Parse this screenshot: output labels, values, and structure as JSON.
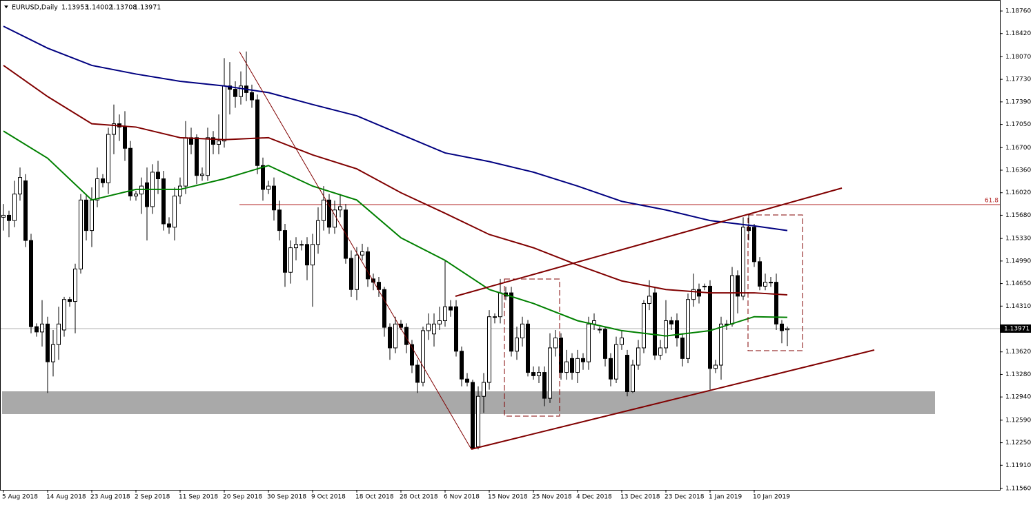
{
  "chart_data": {
    "type": "candlestick",
    "title": "EURUSD,Daily",
    "fib_label": 61.8,
    "up_color": "#ffffff",
    "down_color": "#000000",
    "ylim": [
      1.1156,
      1.1876
    ],
    "yticks": [
      {
        "value": 1.1876,
        "label": "1.18760"
      },
      {
        "value": 1.1842,
        "label": "1.18420"
      },
      {
        "value": 1.1807,
        "label": "1.18070"
      },
      {
        "value": 1.1773,
        "label": "1.17730"
      },
      {
        "value": 1.1739,
        "label": "1.17390"
      },
      {
        "value": 1.1705,
        "label": "1.17050"
      },
      {
        "value": 1.167,
        "label": "1.16700"
      },
      {
        "value": 1.1636,
        "label": "1.16360"
      },
      {
        "value": 1.1602,
        "label": "1.16020"
      },
      {
        "value": 1.1568,
        "label": "1.15680"
      },
      {
        "value": 1.1533,
        "label": "1.15330"
      },
      {
        "value": 1.1499,
        "label": "1.14990"
      },
      {
        "value": 1.1465,
        "label": "1.14650"
      },
      {
        "value": 1.1431,
        "label": "1.14310"
      },
      {
        "value": 1.1396,
        "label": "1.13960"
      },
      {
        "value": 1.1362,
        "label": "1.13620"
      },
      {
        "value": 1.1328,
        "label": "1.13280"
      },
      {
        "value": 1.1294,
        "label": "1.12940"
      },
      {
        "value": 1.1259,
        "label": "1.12590"
      },
      {
        "value": 1.1225,
        "label": "1.12250"
      },
      {
        "value": 1.1191,
        "label": "1.11910"
      },
      {
        "value": 1.1156,
        "label": "1.11560"
      }
    ],
    "categories": [
      "5 Aug 2018",
      null,
      null,
      null,
      null,
      null,
      null,
      null,
      "14 Aug 2018",
      null,
      null,
      null,
      null,
      null,
      null,
      null,
      "23 Aug 2018",
      null,
      null,
      null,
      null,
      null,
      null,
      null,
      "2 Sep 2018",
      null,
      null,
      null,
      null,
      null,
      null,
      null,
      "11 Sep 2018",
      null,
      null,
      null,
      null,
      null,
      null,
      null,
      "20 Sep 2018",
      null,
      null,
      null,
      null,
      null,
      null,
      null,
      "30 Sep 2018",
      null,
      null,
      null,
      null,
      null,
      null,
      null,
      "9 Oct 2018",
      null,
      null,
      null,
      null,
      null,
      null,
      null,
      "18 Oct 2018",
      null,
      null,
      null,
      null,
      null,
      null,
      null,
      "28 Oct 2018",
      null,
      null,
      null,
      null,
      null,
      null,
      null,
      "6 Nov 2018",
      null,
      null,
      null,
      null,
      null,
      null,
      null,
      "15 Nov 2018",
      null,
      null,
      null,
      null,
      null,
      null,
      null,
      "25 Nov 2018",
      null,
      null,
      null,
      null,
      null,
      null,
      null,
      "4 Dec 2018",
      null,
      null,
      null,
      null,
      null,
      null,
      null,
      "13 Dec 2018",
      null,
      null,
      null,
      null,
      null,
      null,
      null,
      "23 Dec 2018",
      null,
      null,
      null,
      null,
      null,
      null,
      null,
      "1 Jan 2019",
      null,
      null,
      null,
      null,
      null,
      null,
      null,
      "10 Jan 2019",
      null,
      null,
      null,
      null,
      null,
      null
    ],
    "open": [
      1.1565,
      1.1568,
      1.156,
      1.16,
      1.162,
      1.153,
      1.14,
      1.1392,
      1.1404,
      1.1347,
      1.1373,
      1.1395,
      1.1441,
      1.1438,
      1.1487,
      1.1591,
      1.1545,
      1.1591,
      1.1623,
      1.1617,
      1.169,
      1.1706,
      1.1701,
      1.1669,
      1.1597,
      1.16,
      1.1617,
      1.1581,
      1.1633,
      1.1623,
      1.1555,
      1.155,
      1.1597,
      1.1612,
      1.1685,
      1.1685,
      1.1628,
      1.1628,
      1.1685,
      1.1675,
      1.168,
      1.1763,
      1.1758,
      1.1747,
      1.1763,
      1.1753,
      1.1742,
      1.1643,
      1.1607,
      1.1612,
      1.1576,
      1.1545,
      1.1482,
      1.1519,
      1.1524,
      1.1524,
      1.1493,
      1.1524,
      1.156,
      1.1591,
      1.155,
      1.1576,
      1.1576,
      1.1503,
      1.1456,
      1.1508,
      1.1513,
      1.1472,
      1.1467,
      1.1456,
      1.1399,
      1.1368,
      1.1404,
      1.1399,
      1.1373,
      1.1342,
      1.1316,
      1.1394,
      1.1389,
      1.1404,
      1.1409,
      1.143,
      1.143,
      1.1363,
      1.1321,
      1.1316,
      1.1219,
      1.1295,
      1.1316,
      1.1415,
      1.1415,
      1.1451,
      1.1451,
      1.1363,
      1.1383,
      1.1404,
      1.1331,
      1.1326,
      1.1331,
      1.1292,
      1.1368,
      1.1383,
      1.1331,
      1.1352,
      1.1331,
      1.1352,
      1.1347,
      1.1404,
      1.1396,
      1.1396,
      1.1352,
      1.1321,
      1.1373,
      1.1357,
      1.1302,
      1.1342,
      1.1368,
      1.1435,
      1.1451,
      1.1357,
      1.1368,
      1.1409,
      1.1409,
      1.1383,
      1.1352,
      1.1441,
      1.1456,
      1.1461,
      1.1461,
      1.1337,
      1.1342,
      1.1404,
      1.1404,
      1.1477,
      1.1446,
      1.155,
      1.155,
      1.1498,
      1.1461,
      1.1467,
      1.1467,
      1.1404,
      1.13953
    ],
    "high": [
      1.1585,
      1.1575,
      1.162,
      1.164,
      1.163,
      1.154,
      1.1405,
      1.144,
      1.1415,
      1.1395,
      1.143,
      1.1445,
      1.1445,
      1.1495,
      1.16,
      1.16,
      1.161,
      1.164,
      1.163,
      1.17,
      1.1735,
      1.172,
      1.1725,
      1.168,
      1.1605,
      1.1625,
      1.164,
      1.1645,
      1.165,
      1.1635,
      1.1565,
      1.161,
      1.1625,
      1.171,
      1.17,
      1.169,
      1.164,
      1.17,
      1.1695,
      1.172,
      1.1805,
      1.1799,
      1.177,
      1.1785,
      1.1815,
      1.1765,
      1.175,
      1.1655,
      1.162,
      1.1625,
      1.159,
      1.1555,
      1.153,
      1.1535,
      1.153,
      1.1535,
      1.154,
      1.158,
      1.1612,
      1.16,
      1.159,
      1.16,
      1.1585,
      1.1515,
      1.152,
      1.1525,
      1.152,
      1.148,
      1.1475,
      1.146,
      1.1405,
      1.1415,
      1.141,
      1.1405,
      1.138,
      1.135,
      1.14,
      1.142,
      1.142,
      1.143,
      1.15,
      1.144,
      1.144,
      1.137,
      1.133,
      1.132,
      1.131,
      1.133,
      1.1425,
      1.142,
      1.1472,
      1.146,
      1.146,
      1.14,
      1.1415,
      1.141,
      1.134,
      1.134,
      1.134,
      1.139,
      1.1395,
      1.139,
      1.1365,
      1.136,
      1.1365,
      1.136,
      1.1415,
      1.142,
      1.14,
      1.14,
      1.136,
      1.1385,
      1.1395,
      1.1365,
      1.135,
      1.138,
      1.144,
      1.147,
      1.146,
      1.138,
      1.144,
      1.1415,
      1.142,
      1.139,
      1.145,
      1.148,
      1.1465,
      1.1465,
      1.147,
      1.135,
      1.1415,
      1.141,
      1.149,
      1.1485,
      1.1565,
      1.157,
      1.1555,
      1.1505,
      1.148,
      1.1475,
      1.148,
      1.141,
      1.14002
    ],
    "low": [
      1.1545,
      1.1535,
      1.155,
      1.159,
      1.152,
      1.139,
      1.1385,
      1.137,
      1.13,
      1.1325,
      1.135,
      1.1385,
      1.143,
      1.139,
      1.148,
      1.153,
      1.152,
      1.158,
      1.161,
      1.16,
      1.166,
      1.168,
      1.165,
      1.159,
      1.159,
      1.157,
      1.153,
      1.157,
      1.16,
      1.1545,
      1.154,
      1.153,
      1.1585,
      1.16,
      1.166,
      1.1615,
      1.162,
      1.162,
      1.166,
      1.166,
      1.167,
      1.172,
      1.173,
      1.1735,
      1.174,
      1.173,
      1.163,
      1.159,
      1.16,
      1.156,
      1.153,
      1.146,
      1.1465,
      1.15,
      1.1515,
      1.147,
      1.143,
      1.151,
      1.1545,
      1.154,
      1.154,
      1.1565,
      1.1495,
      1.1445,
      1.144,
      1.15,
      1.146,
      1.1455,
      1.1445,
      1.1385,
      1.135,
      1.136,
      1.1395,
      1.136,
      1.133,
      1.13,
      1.131,
      1.138,
      1.137,
      1.1395,
      1.14,
      1.1415,
      1.1355,
      1.131,
      1.131,
      1.1215,
      1.1215,
      1.127,
      1.1305,
      1.1405,
      1.1405,
      1.144,
      1.1355,
      1.135,
      1.137,
      1.1325,
      1.132,
      1.1315,
      1.128,
      1.1285,
      1.1355,
      1.132,
      1.132,
      1.132,
      1.1315,
      1.1335,
      1.1335,
      1.1395,
      1.139,
      1.134,
      1.131,
      1.1315,
      1.1365,
      1.1295,
      1.13,
      1.1335,
      1.136,
      1.1425,
      1.135,
      1.135,
      1.136,
      1.1395,
      1.137,
      1.134,
      1.1345,
      1.143,
      1.1435,
      1.1455,
      1.1305,
      1.133,
      1.132,
      1.1395,
      1.14,
      1.142,
      1.144,
      1.153,
      1.149,
      1.1455,
      1.1455,
      1.146,
      1.1395,
      1.1375,
      1.13708
    ],
    "close": [
      1.1568,
      1.156,
      1.16,
      1.1625,
      1.153,
      1.14,
      1.1392,
      1.1404,
      1.1347,
      1.1373,
      1.1404,
      1.1441,
      1.1438,
      1.1487,
      1.1591,
      1.1545,
      1.1591,
      1.1623,
      1.1617,
      1.169,
      1.1706,
      1.1701,
      1.1669,
      1.1597,
      1.16,
      1.1612,
      1.1581,
      1.1633,
      1.1623,
      1.1555,
      1.155,
      1.1597,
      1.1612,
      1.1685,
      1.1675,
      1.1628,
      1.163,
      1.1685,
      1.1675,
      1.168,
      1.1763,
      1.1758,
      1.1747,
      1.1763,
      1.1753,
      1.1742,
      1.1643,
      1.1607,
      1.1612,
      1.1576,
      1.1545,
      1.1482,
      1.1519,
      1.1524,
      1.1524,
      1.1493,
      1.1524,
      1.156,
      1.1591,
      1.155,
      1.1576,
      1.1581,
      1.1503,
      1.1456,
      1.1508,
      1.1513,
      1.1472,
      1.1467,
      1.1456,
      1.1399,
      1.1368,
      1.1404,
      1.1399,
      1.1373,
      1.1342,
      1.1316,
      1.1394,
      1.1404,
      1.1404,
      1.1409,
      1.143,
      1.1425,
      1.1363,
      1.1321,
      1.1316,
      1.1217,
      1.1295,
      1.1316,
      1.1415,
      1.1415,
      1.1451,
      1.1446,
      1.1363,
      1.1383,
      1.1404,
      1.1331,
      1.1326,
      1.1331,
      1.1292,
      1.1368,
      1.1383,
      1.1331,
      1.1347,
      1.1331,
      1.1352,
      1.1347,
      1.1404,
      1.1409,
      1.1396,
      1.1352,
      1.1321,
      1.1373,
      1.1383,
      1.1302,
      1.1342,
      1.1368,
      1.1435,
      1.1446,
      1.1357,
      1.1368,
      1.1409,
      1.1404,
      1.1383,
      1.1352,
      1.1441,
      1.1456,
      1.1446,
      1.1461,
      1.1337,
      1.1342,
      1.1404,
      1.1404,
      1.1477,
      1.1446,
      1.155,
      1.1545,
      1.1498,
      1.1461,
      1.1467,
      1.1467,
      1.1404,
      1.1394,
      1.13971
    ],
    "lines": [
      {
        "color": "#000080",
        "x": [
          0,
          8,
          16,
          24,
          32,
          40,
          48,
          56,
          64,
          72,
          80,
          88,
          96,
          104,
          112,
          120,
          128,
          136,
          142
        ],
        "values": [
          1.1853,
          1.182,
          1.1794,
          1.1781,
          1.177,
          1.1763,
          1.1753,
          1.1735,
          1.1718,
          1.169,
          1.1662,
          1.1649,
          1.1633,
          1.1612,
          1.1589,
          1.1576,
          1.156,
          1.1552,
          1.1545
        ]
      },
      {
        "color": "#800000",
        "x": [
          0,
          8,
          16,
          24,
          32,
          40,
          48,
          56,
          64,
          72,
          80,
          88,
          96,
          104,
          112,
          120,
          128,
          136,
          142
        ],
        "values": [
          1.1794,
          1.1747,
          1.1706,
          1.1701,
          1.1685,
          1.1682,
          1.1685,
          1.1659,
          1.1638,
          1.1602,
          1.1571,
          1.1539,
          1.1519,
          1.1493,
          1.1469,
          1.1456,
          1.1451,
          1.1451,
          1.1448
        ]
      },
      {
        "color": "#008000",
        "x": [
          0,
          8,
          16,
          24,
          32,
          40,
          48,
          56,
          64,
          72,
          80,
          88,
          96,
          104,
          112,
          120,
          128,
          136,
          142
        ],
        "values": [
          1.1695,
          1.1654,
          1.1591,
          1.1607,
          1.1607,
          1.1623,
          1.1643,
          1.1612,
          1.1591,
          1.1534,
          1.15,
          1.1456,
          1.1435,
          1.1409,
          1.1394,
          1.1386,
          1.1394,
          1.1415,
          1.1414
        ]
      }
    ]
  }
}
